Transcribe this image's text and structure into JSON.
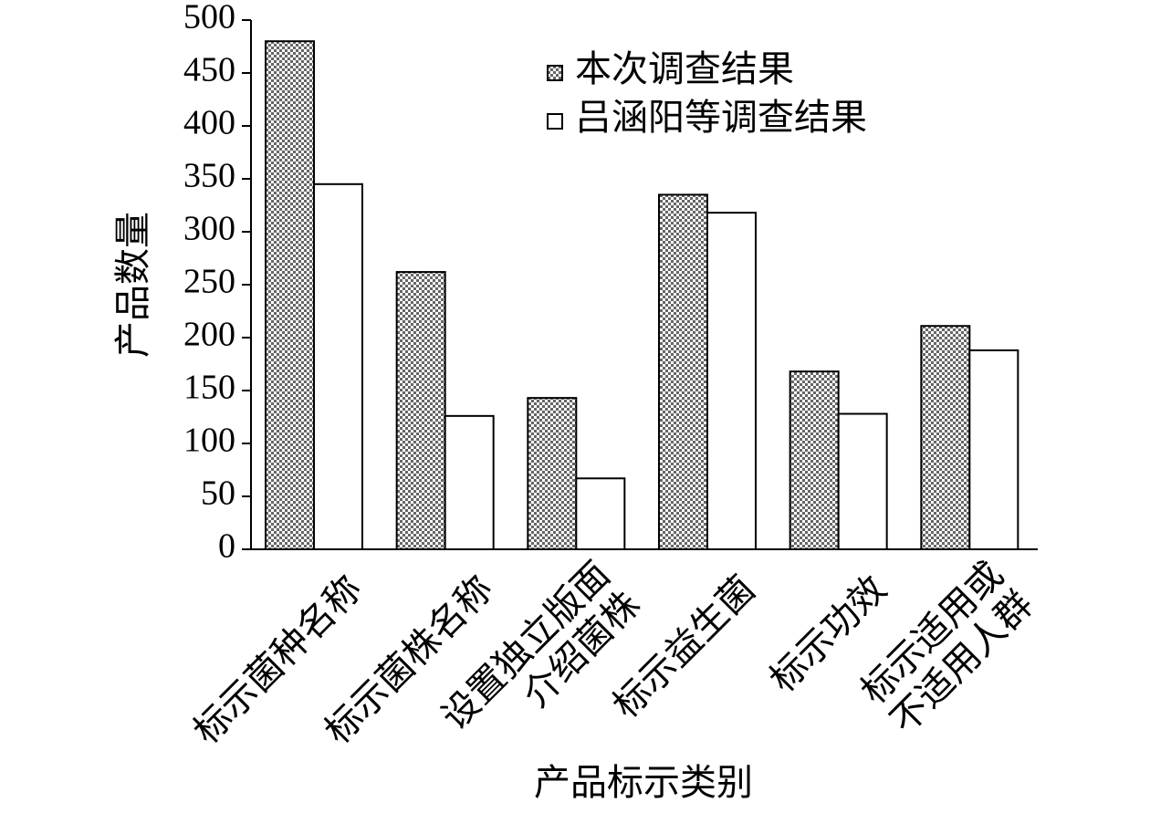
{
  "chart_data": {
    "type": "bar",
    "y_label": "产品数量",
    "x_label": "产品标示类别",
    "categories": [
      "标示菌种名称",
      "标示菌株名称",
      "设置独立版面\n介绍菌株",
      "标示益生菌",
      "标示功效",
      "标示适用或\n不适用人群"
    ],
    "series": [
      {
        "name": "本次调查结果",
        "color": "#999999",
        "pattern": "dots",
        "values": [
          480,
          262,
          143,
          335,
          168,
          211
        ]
      },
      {
        "name": "吕涵阳等调查结果",
        "color": "#ffffff",
        "pattern": "none",
        "values": [
          345,
          126,
          67,
          318,
          128,
          188
        ]
      }
    ],
    "ylim": [
      0,
      500
    ],
    "yticks": [
      0,
      50,
      100,
      150,
      200,
      250,
      300,
      350,
      400,
      450,
      500
    ],
    "grid": false,
    "legend": "top-right"
  }
}
